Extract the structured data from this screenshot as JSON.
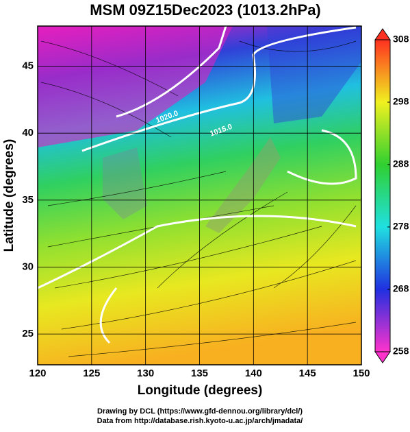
{
  "chart_data": {
    "type": "map",
    "title": "MSM 09Z15Dec2023 (1013.2hPa)",
    "xlabel": "Longitude (degrees)",
    "ylabel": "Latitude  (degrees)",
    "xlim": [
      120,
      150
    ],
    "ylim": [
      22.7,
      48
    ],
    "xticks": [
      120,
      125,
      130,
      135,
      140,
      145,
      150
    ],
    "yticks": [
      25,
      30,
      35,
      40,
      45
    ],
    "grid": true,
    "colorbar": {
      "lim": [
        258,
        308
      ],
      "ticks": [
        258,
        268,
        278,
        288,
        298,
        308
      ],
      "colors": [
        "#ff33cc",
        "#2030e0",
        "#20e0e0",
        "#30d030",
        "#f0f020",
        "#ff3020"
      ]
    },
    "annotations": [
      {
        "text": "1020.0",
        "x": 132,
        "y": 41.2
      },
      {
        "text": "1015.0",
        "x": 137,
        "y": 40.2
      }
    ],
    "credits": [
      "Drawing by DCL (https://www.gfd-dennou.org/library/dcl/)",
      "Data from http://database.rish.kyoto-u.ac.jp/arch/jmadata/"
    ]
  }
}
